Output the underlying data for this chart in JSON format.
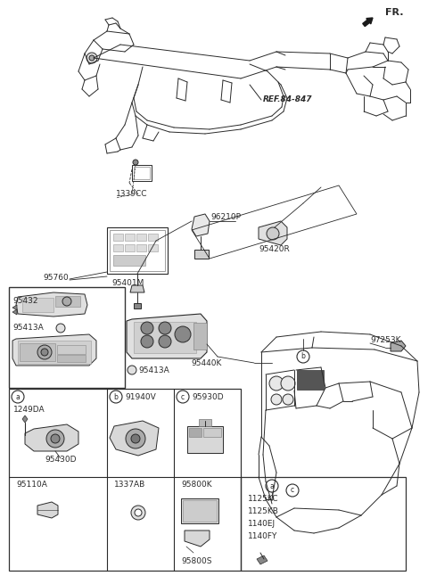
{
  "bg_color": "#ffffff",
  "lc": "#2a2a2a",
  "labels": {
    "FR": "FR.",
    "REF": "REF.84-847",
    "1339CC": "1339CC",
    "95760": "95760",
    "95432": "95432",
    "95413A_a": "95413A",
    "95413A_b": "95413A",
    "95401M": "95401M",
    "95440K": "95440K",
    "96210P": "96210P",
    "95420R": "95420R",
    "97253K": "97253K",
    "91940V": "91940V",
    "95930D": "95930D",
    "1249DA": "1249DA",
    "95430D": "95430D",
    "95110A": "95110A",
    "1337AB": "1337AB",
    "95800K": "95800K",
    "95800S": "95800S",
    "1125KC": "1125KC",
    "1125KB": "1125KB",
    "1140EJ": "1140EJ",
    "1140FY": "1140FY"
  }
}
